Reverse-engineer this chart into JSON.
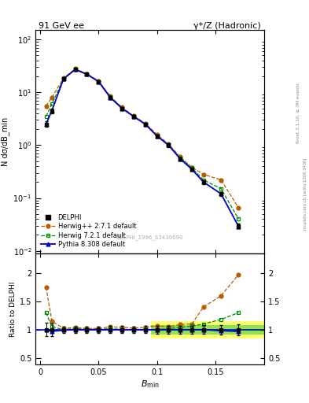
{
  "title_left": "91 GeV ee",
  "title_right": "γ*/Z (Hadronic)",
  "ylabel_main": "N dσ/dB_min",
  "ylabel_ratio": "Ratio to DELPHI",
  "xlabel": "B_min",
  "right_label": "Rivet 3.1.10, ≥ 3M events",
  "right_label2": "mcplots.cern.ch [arXiv:1306.3436]",
  "watermark": "DELPHI_1996_S3430090",
  "x_data": [
    0.005,
    0.01,
    0.02,
    0.03,
    0.04,
    0.05,
    0.06,
    0.07,
    0.08,
    0.09,
    0.1,
    0.11,
    0.12,
    0.13,
    0.14,
    0.155,
    0.17
  ],
  "delphi_y": [
    2.5,
    4.5,
    18.0,
    27.0,
    22.0,
    16.0,
    8.0,
    5.0,
    3.5,
    2.5,
    1.5,
    1.0,
    0.55,
    0.35,
    0.2,
    0.12,
    0.03
  ],
  "delphi_err": [
    0.3,
    0.5,
    1.0,
    1.5,
    1.2,
    0.9,
    0.5,
    0.3,
    0.2,
    0.15,
    0.1,
    0.07,
    0.04,
    0.025,
    0.015,
    0.01,
    0.003
  ],
  "herwig_pp_y": [
    5.5,
    8.0,
    18.5,
    28.0,
    22.5,
    16.5,
    8.5,
    5.2,
    3.6,
    2.6,
    1.6,
    1.05,
    0.6,
    0.38,
    0.28,
    0.22,
    0.065
  ],
  "herwig7_y": [
    3.5,
    6.0,
    18.0,
    27.5,
    22.0,
    16.0,
    8.2,
    5.0,
    3.5,
    2.5,
    1.5,
    1.02,
    0.57,
    0.37,
    0.22,
    0.15,
    0.04
  ],
  "pythia_y": [
    2.5,
    4.5,
    18.0,
    27.0,
    22.0,
    16.0,
    8.0,
    5.0,
    3.5,
    2.5,
    1.5,
    1.0,
    0.55,
    0.35,
    0.2,
    0.12,
    0.029
  ],
  "ratio_herwig_pp": [
    1.75,
    1.15,
    1.02,
    1.04,
    1.02,
    1.02,
    1.05,
    1.04,
    1.03,
    1.04,
    1.07,
    1.05,
    1.09,
    1.1,
    1.4,
    1.6,
    1.97
  ],
  "ratio_herwig7": [
    1.3,
    1.05,
    1.0,
    1.02,
    1.0,
    1.0,
    1.02,
    1.0,
    1.0,
    1.0,
    1.0,
    1.02,
    1.04,
    1.06,
    1.1,
    1.18,
    1.3
  ],
  "ratio_pythia": [
    1.0,
    0.97,
    0.99,
    1.0,
    1.0,
    1.0,
    1.0,
    1.0,
    1.0,
    1.0,
    1.0,
    1.0,
    1.0,
    1.0,
    1.0,
    0.98,
    0.97
  ],
  "delphi_color": "#000000",
  "herwig_pp_color": "#b85c00",
  "herwig7_color": "#008800",
  "pythia_color": "#0000cc",
  "ylim_main": [
    0.009,
    150
  ],
  "ylim_ratio": [
    0.38,
    2.35
  ],
  "xlim": [
    -0.004,
    0.192
  ],
  "band_yellow": [
    0.85,
    1.15
  ],
  "band_green": [
    0.92,
    1.08
  ],
  "band_xstart": 0.095
}
